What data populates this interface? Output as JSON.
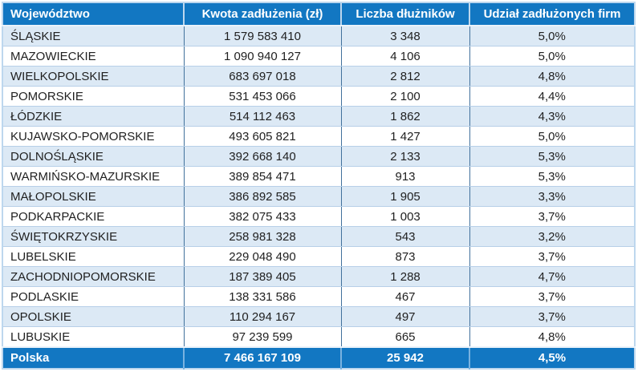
{
  "chart_data": {
    "type": "table",
    "title": "",
    "columns": [
      "Województwo",
      "Kwota zadłużenia (zł)",
      "Liczba dłużników",
      "Udział zadłużonych firm"
    ],
    "rows": [
      [
        "ŚLĄSKIE",
        "1 579 583 410",
        "3 348",
        "5,0%"
      ],
      [
        "MAZOWIECKIE",
        "1 090 940 127",
        "4 106",
        "5,0%"
      ],
      [
        "WIELKOPOLSKIE",
        "683 697 018",
        "2 812",
        "4,8%"
      ],
      [
        "POMORSKIE",
        "531 453 066",
        "2 100",
        "4,4%"
      ],
      [
        "ŁÓDZKIE",
        "514 112 463",
        "1 862",
        "4,3%"
      ],
      [
        "KUJAWSKO-POMORSKIE",
        "493 605 821",
        "1 427",
        "5,0%"
      ],
      [
        "DOLNOŚLĄSKIE",
        "392 668 140",
        "2 133",
        "5,3%"
      ],
      [
        "WARMIŃSKO-MAZURSKIE",
        "389 854 471",
        "913",
        "5,3%"
      ],
      [
        "MAŁOPOLSKIE",
        "386 892 585",
        "1 905",
        "3,3%"
      ],
      [
        "PODKARPACKIE",
        "382 075 433",
        "1 003",
        "3,7%"
      ],
      [
        "ŚWIĘTOKRZYSKIE",
        "258 981 328",
        "543",
        "3,2%"
      ],
      [
        "LUBELSKIE",
        "229 048 490",
        "873",
        "3,7%"
      ],
      [
        "ZACHODNIOPOMORSKIE",
        "187 389 405",
        "1 288",
        "4,7%"
      ],
      [
        "PODLASKIE",
        "138 331 586",
        "467",
        "3,7%"
      ],
      [
        "OPOLSKIE",
        "110 294 167",
        "497",
        "3,7%"
      ],
      [
        "LUBUSKIE",
        "97 239 599",
        "665",
        "4,8%"
      ]
    ],
    "footer": [
      "Polska",
      "7 466 167 109",
      "25 942",
      "4,5%"
    ],
    "layout_hints": {
      "zebra_striping": "odd data rows shaded light blue starting with first row",
      "alignment": {
        "col1": "left",
        "col2": "center",
        "col3": "center",
        "col4": "center"
      }
    }
  },
  "colors": {
    "header_bg": "#1277C2",
    "footer_bg": "#1277C2",
    "header_text": "#FFFFFF",
    "row_alt_bg": "#DCE9F5",
    "row_bg": "#FFFFFF",
    "data_text": "#1F1F1F",
    "row_divider": "#B7CFE8",
    "column_divider": "#41719C",
    "outer_border": "#BDD7EE"
  }
}
